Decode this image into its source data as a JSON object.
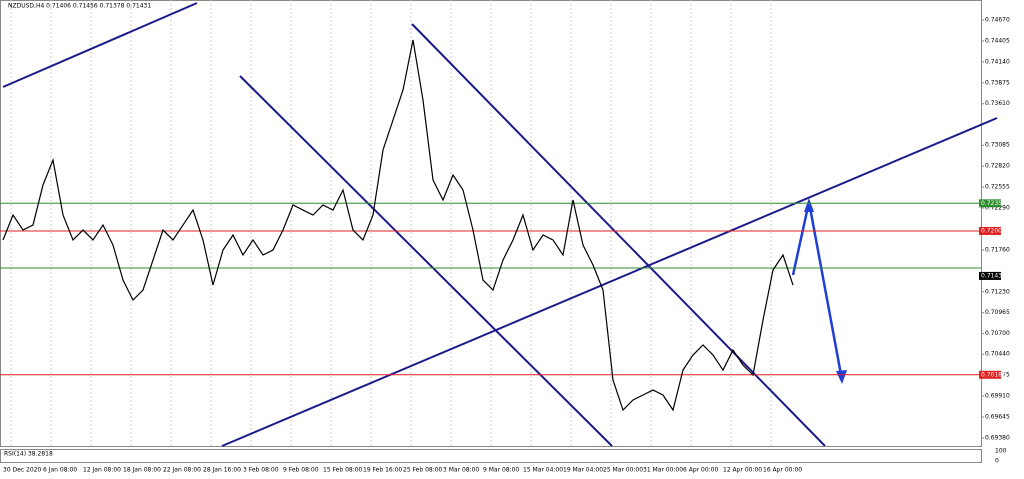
{
  "chart_data": {
    "type": "line",
    "title": "NZDUSD,H4  0.71406 0.71456 0.71378 0.71431",
    "color": "#000000",
    "x_labels": [
      "30 Dec 2020",
      "6 Jan 08:00",
      "12 Jan 08:00",
      "18 Jan 08:00",
      "22 Jan 08:00",
      "28 Jan 16:00",
      "3 Feb 08:00",
      "9 Feb 08:00",
      "15 Feb 08:00",
      "19 Feb 16:00",
      "25 Feb 08:00",
      "3 Mar 08:00",
      "9 Mar 08:00",
      "15 Mar 04:00",
      "19 Mar 04:00",
      "25 Mar 00:00",
      "31 Mar 00:00",
      "6 Apr 00:00",
      "12 Apr 00:00",
      "16 Apr 00:00"
    ],
    "values": [
      0.71886,
      0.72202,
      0.72012,
      0.72075,
      0.72582,
      0.72898,
      0.72202,
      0.71886,
      0.72012,
      0.71886,
      0.72075,
      0.71822,
      0.71379,
      0.71126,
      0.71253,
      0.71632,
      0.72012,
      0.71886,
      0.72075,
      0.72265,
      0.71886,
      0.71316,
      0.71759,
      0.71949,
      0.71696,
      0.71886,
      0.71696,
      0.71759,
      0.72012,
      0.72329,
      0.72265,
      0.72202,
      0.72329,
      0.72265,
      0.72518,
      0.72012,
      0.71886,
      0.72202,
      0.73025,
      0.73404,
      0.73784,
      0.74417,
      0.73657,
      0.72645,
      0.72392,
      0.72708,
      0.72518,
      0.72012,
      0.71379,
      0.71253,
      0.71632,
      0.71886,
      0.72202,
      0.71759,
      0.71949,
      0.71886,
      0.71696,
      0.72392,
      0.71822,
      0.71569,
      0.71253,
      0.70114,
      0.69734,
      0.69861,
      0.69924,
      0.69987,
      0.69924,
      0.69734,
      0.7024,
      0.7043,
      0.70557,
      0.7043,
      0.7024,
      0.70493,
      0.70303,
      0.70177,
      0.70873,
      0.71506,
      0.71696,
      0.71316
    ],
    "ylim": [
      0.69266,
      0.74923
    ],
    "yticks": [
      {
        "value": 0.7467,
        "label": "0.74670"
      },
      {
        "value": 0.74405,
        "label": "0.74405"
      },
      {
        "value": 0.7414,
        "label": "0.74140"
      },
      {
        "value": 0.73875,
        "label": "0.73875"
      },
      {
        "value": 0.7361,
        "label": "0.73610"
      },
      {
        "value": 0.73085,
        "label": "0.73085"
      },
      {
        "value": 0.7282,
        "label": "0.72820"
      },
      {
        "value": 0.72555,
        "label": "0.72555"
      },
      {
        "value": 0.7229,
        "label": "0.72290"
      },
      {
        "value": 0.7176,
        "label": "0.71760"
      },
      {
        "value": 0.7123,
        "label": "0.71230"
      },
      {
        "value": 0.70965,
        "label": "0.70965"
      },
      {
        "value": 0.707,
        "label": "0.70700"
      },
      {
        "value": 0.7044,
        "label": "0.70440"
      },
      {
        "value": 0.70175,
        "label": "0.70175"
      },
      {
        "value": 0.6991,
        "label": "0.69910"
      },
      {
        "value": 0.69645,
        "label": "0.69645"
      },
      {
        "value": 0.6938,
        "label": "0.69380"
      }
    ],
    "levels": [
      {
        "value": 0.7235,
        "label": "0.72350",
        "color": "#2e8b2e"
      },
      {
        "value": 0.72,
        "label": "0.72000",
        "color": "#e02020"
      },
      {
        "value": 0.71431,
        "label": "0.71431",
        "color": "#000000"
      },
      {
        "value": 0.7018,
        "label": "0.70180",
        "color": "#e02020"
      }
    ],
    "support_level": {
      "value": 0.71531,
      "color": "#2e8b2e"
    },
    "rsi_label": "RSI(14) 38.2818",
    "rsi_ticks": [
      100,
      0
    ]
  }
}
